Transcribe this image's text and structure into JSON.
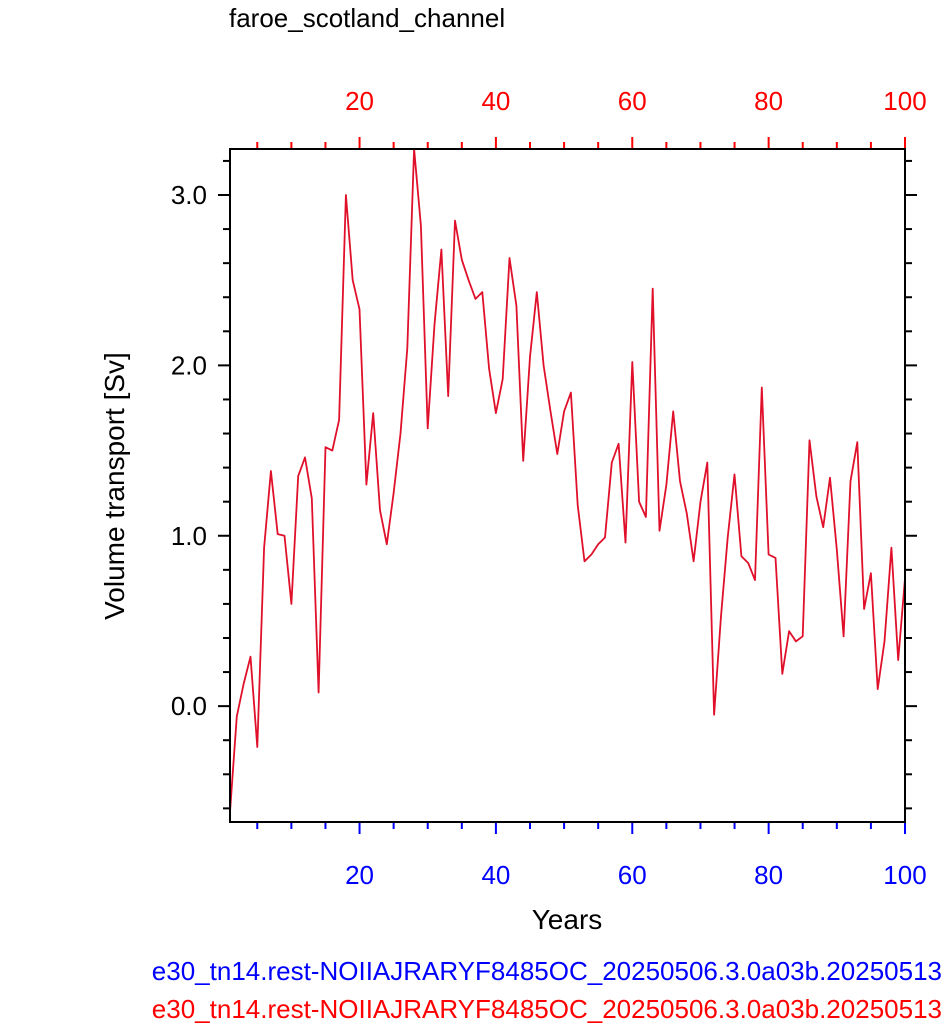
{
  "chart_data": {
    "type": "line",
    "title": "faroe_scotland_channel",
    "xlabel": "Years",
    "ylabel": "Volume transport [Sv]",
    "xlim": [
      1,
      100
    ],
    "ylim": [
      -0.68,
      3.27
    ],
    "x_ticks": [
      20,
      40,
      60,
      80,
      100
    ],
    "x_tick_labels": [
      "20",
      "40",
      "60",
      "80",
      "100"
    ],
    "y_ticks": [
      0.0,
      1.0,
      2.0,
      3.0
    ],
    "y_tick_labels": [
      "0.0",
      "1.0",
      "2.0",
      "3.0"
    ],
    "grid": false,
    "colors": {
      "blue": "#0000ff",
      "red": "#ff0000",
      "series_line": "#e0102a",
      "axis": "#000000"
    },
    "case_labels": [
      {
        "text": "e30_tn14.rest-NOIIAJRARYF8485OC_20250506.3.0a03b.20250513",
        "color": "#0000ff"
      },
      {
        "text": "e30_tn14.rest-NOIIAJRARYF8485OC_20250506.3.0a03b.20250513",
        "color": "#ff0000"
      }
    ],
    "x": [
      1,
      2,
      3,
      4,
      5,
      6,
      7,
      8,
      9,
      10,
      11,
      12,
      13,
      14,
      15,
      16,
      17,
      18,
      19,
      20,
      21,
      22,
      23,
      24,
      25,
      26,
      27,
      28,
      29,
      30,
      31,
      32,
      33,
      34,
      35,
      36,
      37,
      38,
      39,
      40,
      41,
      42,
      43,
      44,
      45,
      46,
      47,
      48,
      49,
      50,
      51,
      52,
      53,
      54,
      55,
      56,
      57,
      58,
      59,
      60,
      61,
      62,
      63,
      64,
      65,
      66,
      67,
      68,
      69,
      70,
      71,
      72,
      73,
      74,
      75,
      76,
      77,
      78,
      79,
      80,
      81,
      82,
      83,
      84,
      85,
      86,
      87,
      88,
      89,
      90,
      91,
      92,
      93,
      94,
      95,
      96,
      97,
      98,
      99,
      100
    ],
    "series": [
      {
        "color": "#e0102a",
        "values": [
          -0.62,
          -0.06,
          0.13,
          0.29,
          -0.24,
          0.93,
          1.38,
          1.01,
          1.0,
          0.6,
          1.35,
          1.46,
          1.22,
          0.08,
          1.52,
          1.5,
          1.68,
          3.0,
          2.5,
          2.33,
          1.3,
          1.72,
          1.15,
          0.95,
          1.25,
          1.6,
          2.1,
          3.27,
          2.82,
          1.63,
          2.24,
          2.68,
          1.82,
          2.85,
          2.62,
          2.5,
          2.39,
          2.43,
          1.98,
          1.72,
          1.92,
          2.63,
          2.35,
          1.44,
          2.05,
          2.43,
          2.0,
          1.73,
          1.48,
          1.73,
          1.84,
          1.18,
          0.85,
          0.89,
          0.95,
          0.99,
          1.43,
          1.54,
          0.96,
          2.02,
          1.2,
          1.11,
          2.45,
          1.03,
          1.3,
          1.73,
          1.32,
          1.13,
          0.85,
          1.2,
          1.43,
          -0.05,
          0.52,
          0.99,
          1.36,
          0.88,
          0.84,
          0.74,
          1.87,
          0.89,
          0.87,
          0.19,
          0.44,
          0.38,
          0.41,
          1.56,
          1.23,
          1.05,
          1.34,
          0.92,
          0.41,
          1.32,
          1.55,
          0.57,
          0.78,
          0.1,
          0.38,
          0.93,
          0.27,
          0.75
        ]
      }
    ]
  }
}
